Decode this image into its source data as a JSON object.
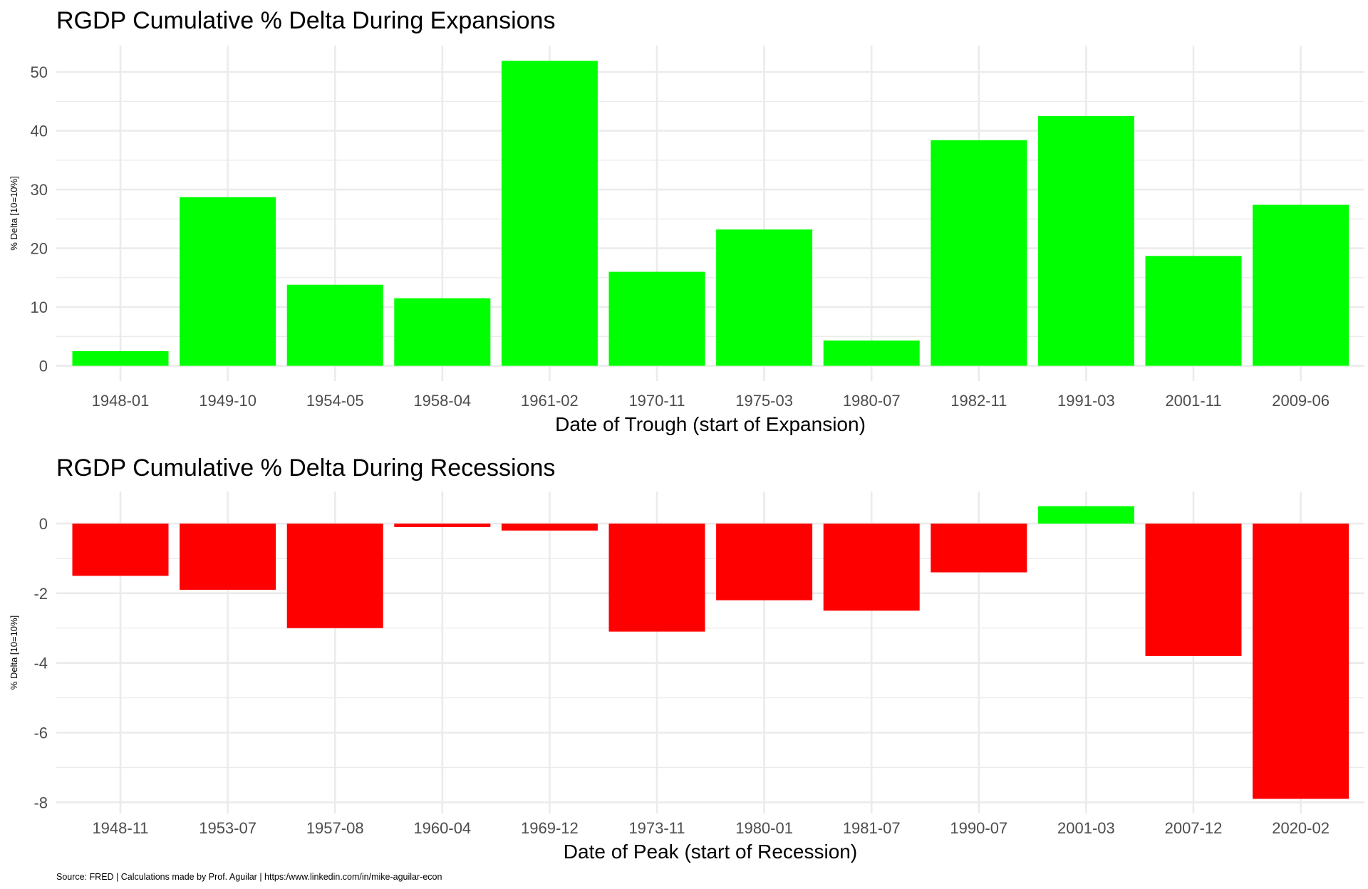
{
  "chart_data": [
    {
      "type": "bar",
      "title": "RGDP Cumulative % Delta During Expansions",
      "xlabel": "Date of Trough (start of Expansion)",
      "ylabel": "% Delta [10=10%]",
      "categories": [
        "1948-01",
        "1949-10",
        "1954-05",
        "1958-04",
        "1961-02",
        "1970-11",
        "1975-03",
        "1980-07",
        "1982-11",
        "1991-03",
        "2001-11",
        "2009-06"
      ],
      "values": [
        2.5,
        28.7,
        13.8,
        11.5,
        51.9,
        16.0,
        23.2,
        4.3,
        38.4,
        42.5,
        18.7,
        27.4
      ],
      "yticks": [
        0,
        10,
        20,
        30,
        40,
        50
      ],
      "ylim": [
        -2.6,
        54.5
      ],
      "grid": true,
      "colors": {
        "positive": "#00FF00",
        "negative": "#FF0000"
      }
    },
    {
      "type": "bar",
      "title": "RGDP Cumulative % Delta During Recessions",
      "xlabel": "Date of Peak (start of Recession)",
      "ylabel": "% Delta [10=10%]",
      "categories": [
        "1948-11",
        "1953-07",
        "1957-08",
        "1960-04",
        "1969-12",
        "1973-11",
        "1980-01",
        "1981-07",
        "1990-07",
        "2001-03",
        "2007-12",
        "2020-02"
      ],
      "values": [
        -1.5,
        -1.9,
        -3.0,
        -0.1,
        -0.2,
        -3.1,
        -2.2,
        -2.5,
        -1.4,
        0.5,
        -3.8,
        -7.9
      ],
      "yticks": [
        0,
        -2,
        -4,
        -6,
        -8
      ],
      "ylim": [
        -8.32,
        0.92
      ],
      "grid": true,
      "colors": {
        "positive": "#00FF00",
        "negative": "#FF0000"
      }
    }
  ],
  "caption": "Source: FRED | Calculations made by Prof. Aguilar | https:/www.linkedin.com/in/mike-aguilar-econ"
}
